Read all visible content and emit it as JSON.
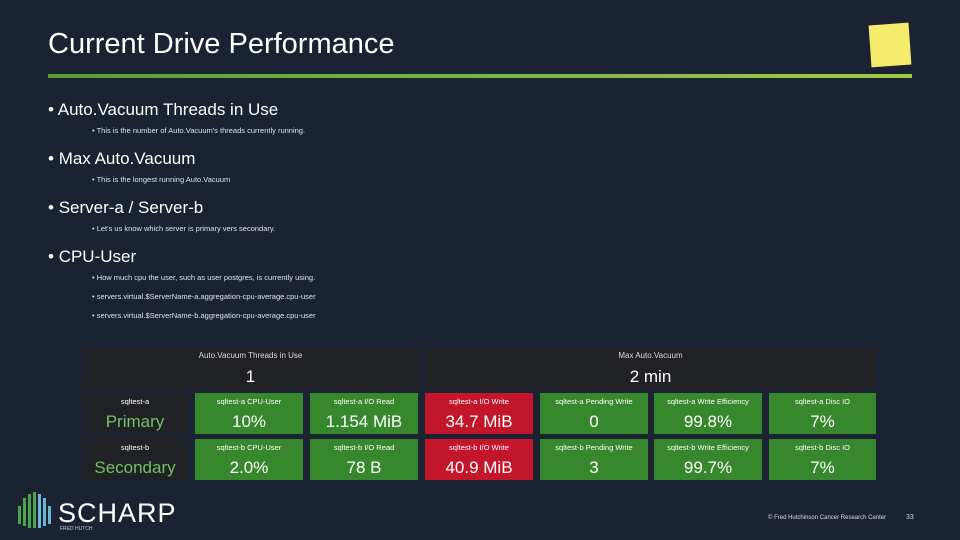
{
  "title": "Current Drive Performance",
  "bullets": [
    {
      "text": "Auto.Vacuum Threads in Use",
      "subs": [
        "This is the number of Auto.Vacuum's threads currently running."
      ]
    },
    {
      "text": "Max Auto.Vacuum",
      "subs": [
        "This is the longest running Auto.Vacuum"
      ]
    },
    {
      "text": "Server-a / Server-b",
      "subs": [
        "Let's us know which server is primary vers secondary."
      ]
    },
    {
      "text": "CPU-User",
      "subs": [
        "How much cpu the user, such as user postgres, is currently using.",
        "servers.virtual.$ServerName-a.aggregation-cpu-average.cpu-user",
        "servers.virtual.$ServerName-b.aggregation-cpu-average.cpu-user"
      ]
    }
  ],
  "dashboard": {
    "panels": [
      {
        "title": "Auto.Vacuum Threads in Use",
        "value": "1"
      },
      {
        "title": "Max Auto.Vacuum",
        "value": "2 min"
      }
    ],
    "rows": [
      {
        "server": "sqltest-a",
        "role": "Primary",
        "cells": [
          {
            "title": "sqltest-a CPU-User",
            "value": "10%"
          },
          {
            "title": "sqltest-a I/O Read",
            "value": "1.154 MiB"
          },
          {
            "title": "sqltest-a I/O Write",
            "value": "34.7 MiB"
          },
          {
            "title": "sqltest-a Pending Write",
            "value": "0"
          },
          {
            "title": "sqltest-a Write Efficiency",
            "value": "99.8%"
          },
          {
            "title": "sqltest-a Disc IO",
            "value": "7%"
          }
        ]
      },
      {
        "server": "sqltest-b",
        "role": "Secondary",
        "cells": [
          {
            "title": "sqltest-b CPU-User",
            "value": "2.0%"
          },
          {
            "title": "sqltest-b I/O Read",
            "value": "78 B"
          },
          {
            "title": "sqltest-b I/O Write",
            "value": "40.9 MiB"
          },
          {
            "title": "sqltest-b Pending Write",
            "value": "3"
          },
          {
            "title": "sqltest-b Write Efficiency",
            "value": "99.7%"
          },
          {
            "title": "sqltest-b Disc IO",
            "value": "7%"
          }
        ]
      }
    ]
  },
  "logo": {
    "name": "SCHARP",
    "tagline": "FRED HUTCH"
  },
  "footer": {
    "copyright": "© Fred Hutchinson Cancer Research Center",
    "page": "33"
  }
}
